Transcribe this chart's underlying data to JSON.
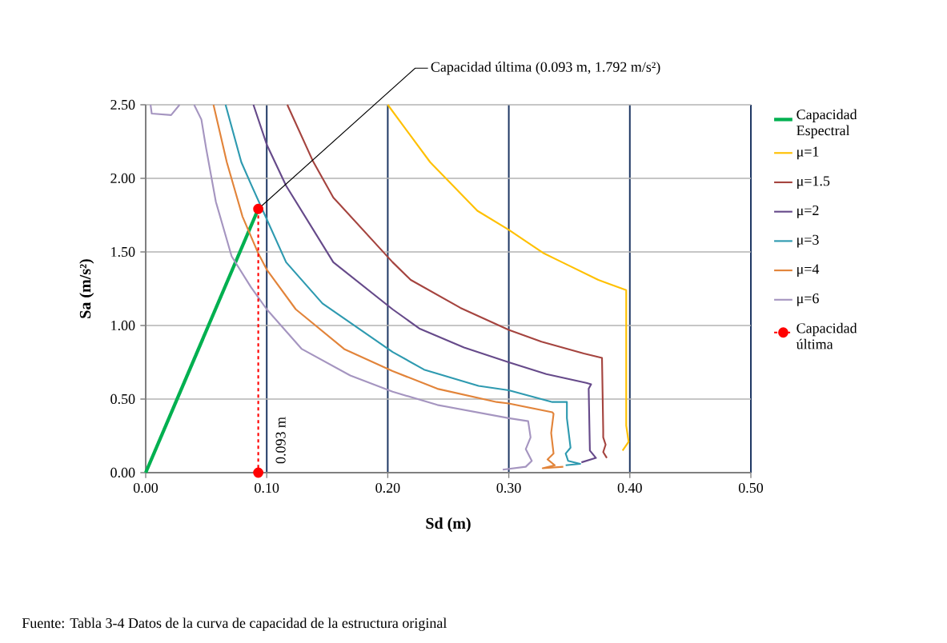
{
  "chart_data": {
    "type": "line",
    "xlabel": "Sd (m)",
    "ylabel": "Sa (m/s²)",
    "xlim": [
      0,
      0.5
    ],
    "ylim": [
      0,
      2.5
    ],
    "xticks": [
      {
        "value": 0,
        "label": "0.00"
      },
      {
        "value": 0.1,
        "label": "0.10"
      },
      {
        "value": 0.2,
        "label": "0.20"
      },
      {
        "value": 0.3,
        "label": "0.30"
      },
      {
        "value": 0.4,
        "label": "0.40"
      },
      {
        "value": 0.5,
        "label": "0.50"
      }
    ],
    "yticks": [
      {
        "value": 0,
        "label": "0.00"
      },
      {
        "value": 0.5,
        "label": "0.50"
      },
      {
        "value": 1,
        "label": "1.00"
      },
      {
        "value": 1.5,
        "label": "1.50"
      },
      {
        "value": 2,
        "label": "2.00"
      },
      {
        "value": 2.5,
        "label": "2.50"
      }
    ],
    "grid": true,
    "legend": "right",
    "series": [
      {
        "name": "Capacidad Espectral",
        "color": "#00b050",
        "x": [
          0,
          0.093
        ],
        "values": [
          0,
          1.792
        ]
      },
      {
        "name": "μ=1",
        "color": "#ffc000",
        "x": [
          0.2,
          0.235,
          0.274,
          0.3,
          0.329,
          0.344,
          0.374,
          0.397,
          0.397,
          0.399,
          0.394
        ],
        "values": [
          2.5,
          2.11,
          1.78,
          1.65,
          1.49,
          1.43,
          1.31,
          1.24,
          0.32,
          0.21,
          0.15
        ]
      },
      {
        "name": "μ=1.5",
        "color": "#a5443f",
        "x": [
          0.117,
          0.138,
          0.155,
          0.204,
          0.219,
          0.26,
          0.3,
          0.327,
          0.362,
          0.377,
          0.378,
          0.378,
          0.38,
          0.378,
          0.381
        ],
        "values": [
          2.5,
          2.12,
          1.87,
          1.43,
          1.31,
          1.12,
          0.97,
          0.89,
          0.81,
          0.78,
          0.29,
          0.24,
          0.19,
          0.14,
          0.1
        ]
      },
      {
        "name": "μ=2",
        "color": "#664a8a",
        "x": [
          0.089,
          0.1,
          0.116,
          0.155,
          0.204,
          0.226,
          0.263,
          0.3,
          0.331,
          0.364,
          0.368,
          0.366,
          0.367,
          0.372,
          0.36
        ],
        "values": [
          2.5,
          2.23,
          1.95,
          1.43,
          1.11,
          0.98,
          0.85,
          0.75,
          0.67,
          0.61,
          0.6,
          0.57,
          0.15,
          0.1,
          0.07
        ]
      },
      {
        "name": "μ=3",
        "color": "#2e9ab0",
        "x": [
          0.066,
          0.079,
          0.087,
          0.116,
          0.146,
          0.204,
          0.23,
          0.275,
          0.3,
          0.336,
          0.348,
          0.348,
          0.351,
          0.347,
          0.349,
          0.359,
          0.347
        ],
        "values": [
          2.5,
          2.11,
          1.96,
          1.43,
          1.15,
          0.82,
          0.7,
          0.59,
          0.56,
          0.48,
          0.48,
          0.37,
          0.17,
          0.13,
          0.08,
          0.06,
          0.05
        ]
      },
      {
        "name": "μ=4",
        "color": "#e2843a",
        "x": [
          0.056,
          0.067,
          0.08,
          0.093,
          0.1,
          0.124,
          0.164,
          0.204,
          0.241,
          0.29,
          0.3,
          0.336,
          0.337,
          0.335,
          0.337,
          0.332,
          0.338,
          0.328,
          0.345
        ],
        "values": [
          2.5,
          2.11,
          1.74,
          1.49,
          1.38,
          1.11,
          0.84,
          0.69,
          0.57,
          0.48,
          0.47,
          0.41,
          0.4,
          0.27,
          0.13,
          0.09,
          0.05,
          0.03,
          0.04
        ]
      },
      {
        "name": "μ=6",
        "color": "#a595c0",
        "x": [
          0.004,
          0.005,
          0.021,
          0.028,
          null,
          0.04,
          0.046,
          0.05,
          0.058,
          0.071,
          0.087,
          0.1,
          0.129,
          0.169,
          0.204,
          0.241,
          0.3,
          0.316,
          0.318,
          0.314,
          0.319,
          0.314,
          0.295
        ],
        "values": [
          2.5,
          2.44,
          2.43,
          2.5,
          null,
          2.5,
          2.4,
          2.2,
          1.84,
          1.47,
          1.26,
          1.11,
          0.84,
          0.66,
          0.55,
          0.46,
          0.37,
          0.35,
          0.24,
          0.16,
          0.08,
          0.04,
          0.02
        ]
      },
      {
        "name": "Capacidad última",
        "color": "#ff0000",
        "x": [
          0.093,
          0.093
        ],
        "values": [
          1.792,
          0
        ],
        "line_style": "dashed",
        "marker": "circle"
      }
    ],
    "annotations": [
      {
        "text": "Capacidad última (0.093 m, 1.792 m/s²)",
        "x": 0.093,
        "y": 1.792
      },
      {
        "text": "0.093 m",
        "x": 0.093,
        "y": 0
      },
      "Fuente: Tabla 3-4 Datos de la curva de capacidad de la estructura original"
    ]
  }
}
